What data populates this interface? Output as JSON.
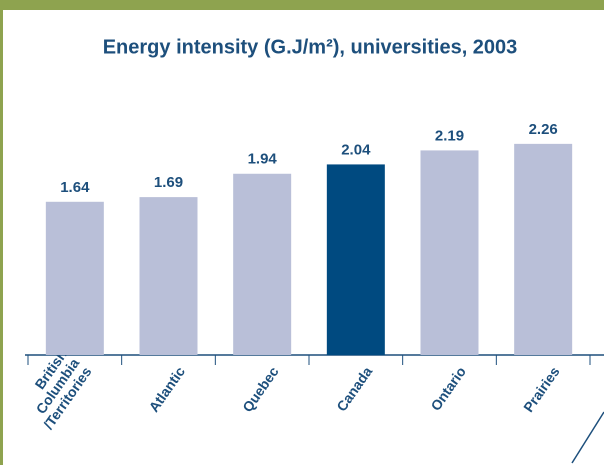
{
  "chart_data": {
    "type": "bar",
    "title": "Energy intensity (G.J/m²), universities, 2003",
    "categories": [
      "British\nColumbia\n/Territories",
      "Atlantic",
      "Quebec",
      "Canada",
      "Ontario",
      "Prairies"
    ],
    "values": [
      1.64,
      1.69,
      1.94,
      2.04,
      2.19,
      2.26
    ],
    "colors": [
      "#b9bfd8",
      "#b9bfd8",
      "#b9bfd8",
      "#004a80",
      "#b9bfd8",
      "#b9bfd8"
    ],
    "ylim": [
      0,
      3.8
    ]
  }
}
